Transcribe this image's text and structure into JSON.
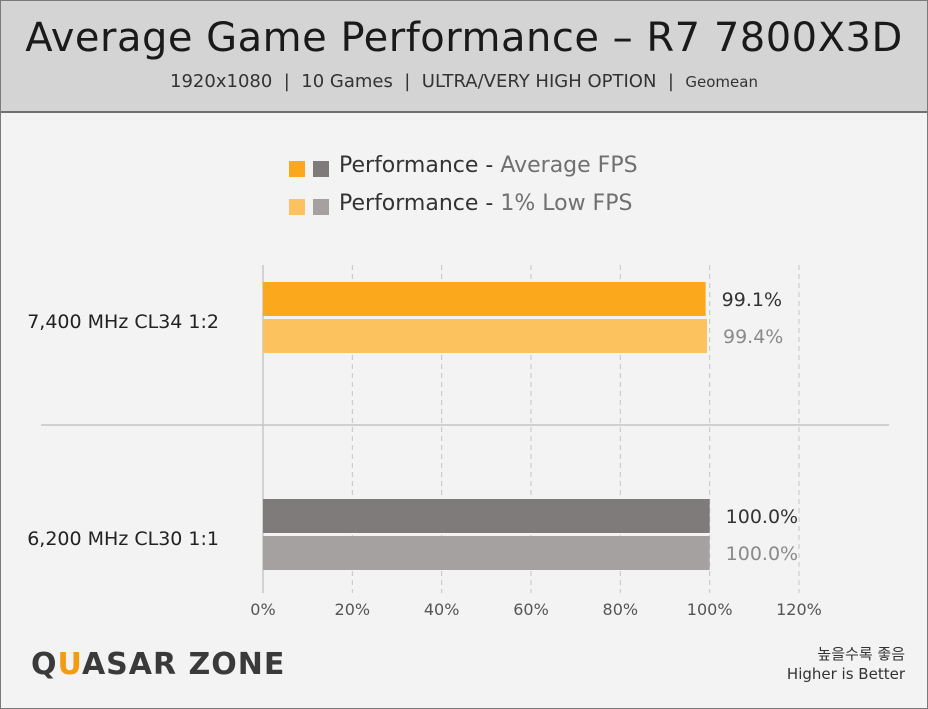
{
  "header": {
    "title": "Average Game Performance – R7 7800X3D",
    "subtitle_main": "1920x1080  |  10 Games  |  ULTRA/VERY HIGH OPTION  |  ",
    "subtitle_small": "Geomean"
  },
  "legend": {
    "row1": {
      "prefix": "Performance - ",
      "suffix": "Average FPS"
    },
    "row2": {
      "prefix": "Performance - ",
      "suffix": "1% Low FPS"
    }
  },
  "footer": {
    "logo_pre": "Q",
    "logo_accent": "U",
    "logo_post": "ASAR ZONE",
    "note_korean": "높을수록 좋음",
    "note_english": "Higher is Better"
  },
  "colors": {
    "orange_avg": "#fba81c",
    "orange_low": "#fcc25d",
    "grey_avg": "#7f7b7a",
    "grey_low": "#a5a1a0",
    "label_dark": "#333333",
    "label_light": "#8a8a8a"
  },
  "chart_data": {
    "type": "bar",
    "orientation": "horizontal",
    "title": "Average Game Performance – R7 7800X3D",
    "categories": [
      "7,400 MHz CL34 1:2",
      "6,200 MHz CL30 1:1"
    ],
    "series": [
      {
        "name": "Performance - Average FPS",
        "values": [
          99.1,
          100.0
        ]
      },
      {
        "name": "Performance - 1% Low FPS",
        "values": [
          99.4,
          100.0
        ]
      }
    ],
    "data_labels": [
      [
        "99.1%",
        "99.4%"
      ],
      [
        "100.0%",
        "100.0%"
      ]
    ],
    "xlim": [
      0,
      120
    ],
    "xticks": [
      "0%",
      "20%",
      "40%",
      "60%",
      "80%",
      "100%",
      "120%"
    ],
    "grid": "vertical dashed",
    "legend_position": "top-center"
  }
}
